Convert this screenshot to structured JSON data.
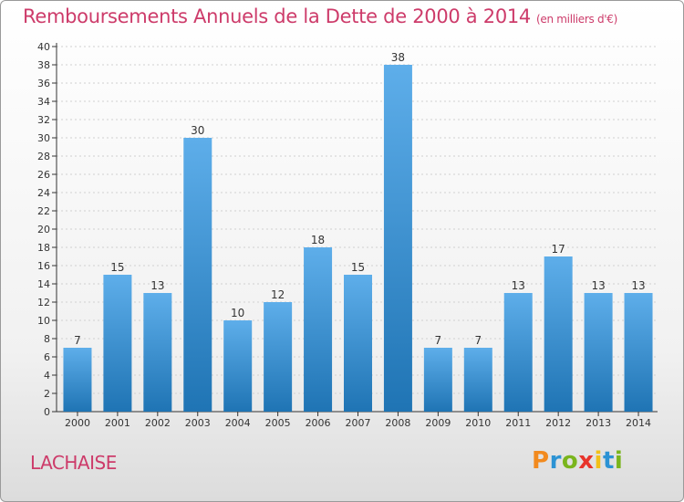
{
  "header": {
    "title": "Remboursements Annuels de la Dette de 2000 à 2014",
    "unit": "(en milliers d'€)"
  },
  "footer": {
    "commune": "LACHAISE",
    "logo_text": "Proxiti"
  },
  "colors": {
    "title": "#cd3b6a",
    "bar_light": "#5eaeea",
    "bar_dark": "#1f74b4",
    "axis": "#333333",
    "grid": "#d0d0d0"
  },
  "chart_data": {
    "type": "bar",
    "categories": [
      "2000",
      "2001",
      "2002",
      "2003",
      "2004",
      "2005",
      "2006",
      "2007",
      "2008",
      "2009",
      "2010",
      "2011",
      "2012",
      "2013",
      "2014"
    ],
    "values": [
      7,
      15,
      13,
      30,
      10,
      12,
      18,
      15,
      38,
      7,
      7,
      13,
      17,
      13,
      13
    ],
    "ylim": [
      0,
      40
    ],
    "yticks": [
      0,
      2,
      4,
      6,
      8,
      10,
      12,
      14,
      16,
      18,
      20,
      22,
      24,
      26,
      28,
      30,
      32,
      34,
      36,
      38,
      40
    ],
    "data_labels": true,
    "legend": "none"
  }
}
